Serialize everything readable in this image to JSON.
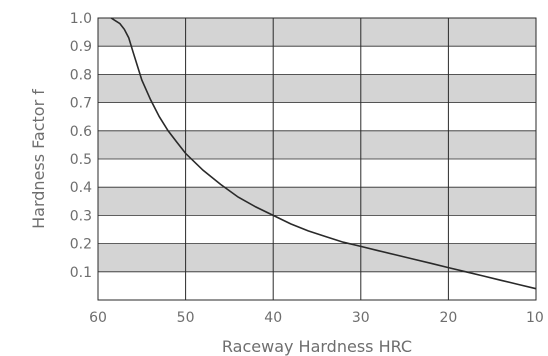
{
  "chart_data": {
    "type": "line",
    "xlabel": "Raceway Hardness HRC",
    "ylabel": "Hardness Factor f",
    "xlim": [
      60,
      10
    ],
    "ylim": [
      0.0,
      1.0
    ],
    "x_reversed": true,
    "x_ticks": [
      "60",
      "50",
      "40",
      "30",
      "20",
      "10"
    ],
    "y_ticks": [
      "0.1",
      "0.2",
      "0.3",
      "0.4",
      "0.5",
      "0.6",
      "0.7",
      "0.8",
      "0.9",
      "1.0"
    ],
    "grid": "vertical lines at each x tick; alternating gray and white horizontal bands every 0.1",
    "band_colors": [
      "#d4d4d4",
      "#ffffff"
    ],
    "line_color": "#2a2a2a",
    "series": [
      {
        "x": [
          58.5,
          58.0,
          57.5,
          57.0,
          56.5,
          56.0,
          55.5,
          55.0,
          54.0,
          53.0,
          52.0,
          51.0,
          50.0,
          48.0,
          46.0,
          44.0,
          42.0,
          40.0,
          38.0,
          36.0,
          34.0,
          32.0,
          30.0,
          28.0,
          26.0,
          24.0,
          22.0,
          20.0,
          18.0,
          16.0,
          14.0,
          12.0,
          10.0
        ],
        "y": [
          1.0,
          0.99,
          0.98,
          0.96,
          0.93,
          0.88,
          0.83,
          0.78,
          0.71,
          0.65,
          0.6,
          0.56,
          0.52,
          0.46,
          0.41,
          0.365,
          0.33,
          0.3,
          0.27,
          0.245,
          0.225,
          0.205,
          0.19,
          0.175,
          0.16,
          0.145,
          0.13,
          0.115,
          0.1,
          0.085,
          0.07,
          0.055,
          0.04
        ]
      }
    ]
  }
}
